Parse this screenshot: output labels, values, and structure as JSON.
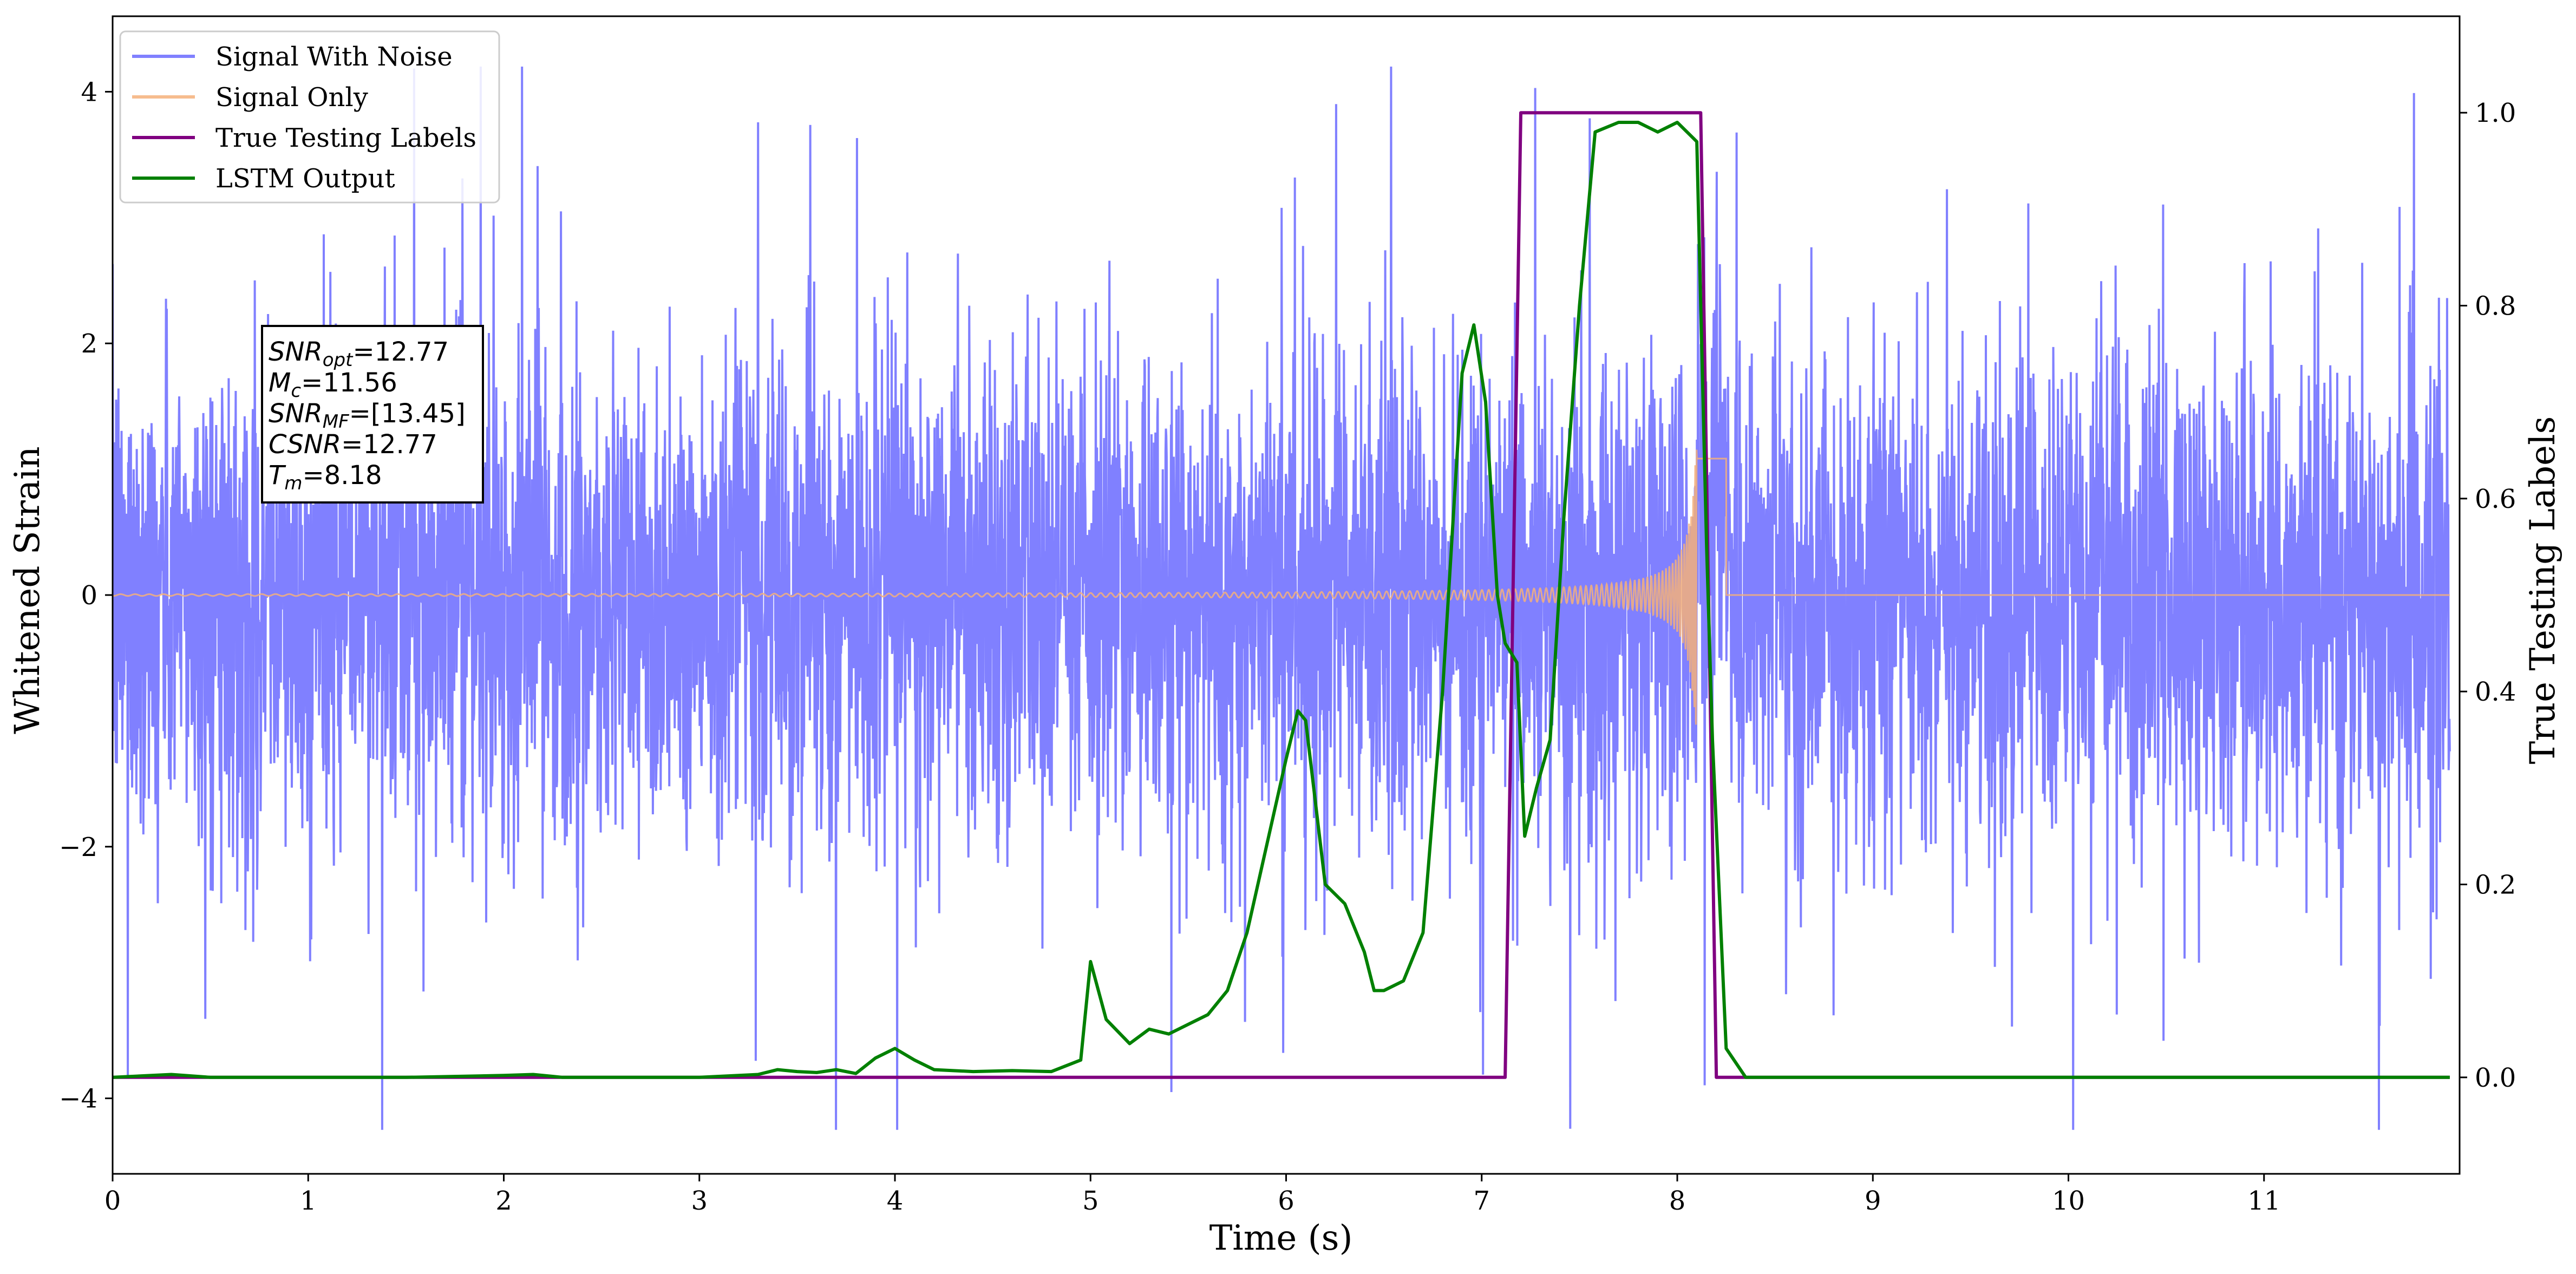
{
  "chart_data": {
    "type": "line",
    "xlabel": "Time (s)",
    "ylabel_left": "Whitened Strain",
    "ylabel_right": "True Testing Labels",
    "xlim": [
      0,
      12
    ],
    "ylim_left": [
      -4.6,
      4.6
    ],
    "ylim_right": [
      -0.1,
      1.1
    ],
    "x_ticks": [
      "0",
      "1",
      "2",
      "3",
      "4",
      "5",
      "6",
      "7",
      "8",
      "9",
      "10",
      "11"
    ],
    "y_ticks_left": [
      "−4",
      "−2",
      "0",
      "2",
      "4"
    ],
    "y_ticks_right": [
      "0.0",
      "0.2",
      "0.4",
      "0.6",
      "0.8",
      "1.0"
    ],
    "legend_position": "top-left",
    "grid": false,
    "colors": {
      "noise": "#8080ff",
      "signal": "#f5b07a",
      "labels": "#800080",
      "lstm": "#008000"
    },
    "series": [
      {
        "name": "Signal With Noise",
        "axis": "left",
        "description_values": {
          "x_start": 0,
          "x_end": 12,
          "typical_range": [
            -1.8,
            1.8
          ],
          "extreme_range": [
            -4.2,
            4.2
          ]
        }
      },
      {
        "name": "Signal Only",
        "axis": "left",
        "description_values": {
          "chirp_start": 0,
          "chirp_peak": 8.1,
          "peak_amplitude": 1.2,
          "zero_after": 8.25
        }
      },
      {
        "name": "True Testing Labels",
        "axis": "right",
        "x": [
          0,
          7.12,
          7.2,
          8.12,
          8.2,
          11.95
        ],
        "y": [
          0,
          0,
          1,
          1,
          0,
          0
        ]
      },
      {
        "name": "LSTM Output",
        "axis": "right",
        "x": [
          0,
          0.3,
          0.5,
          1,
          1.5,
          2,
          2.15,
          2.3,
          2.5,
          3,
          3.3,
          3.4,
          3.5,
          3.6,
          3.7,
          3.8,
          3.9,
          4.0,
          4.1,
          4.2,
          4.4,
          4.6,
          4.8,
          4.95,
          5.0,
          5.08,
          5.2,
          5.3,
          5.4,
          5.5,
          5.6,
          5.7,
          5.8,
          5.9,
          6.0,
          6.06,
          6.1,
          6.2,
          6.3,
          6.4,
          6.45,
          6.5,
          6.6,
          6.7,
          6.8,
          6.9,
          6.96,
          7.02,
          7.08,
          7.12,
          7.18,
          7.22,
          7.28,
          7.35,
          7.42,
          7.5,
          7.58,
          7.7,
          7.8,
          7.9,
          8.0,
          8.1,
          8.12,
          8.15,
          8.18,
          8.25,
          8.35,
          11.95
        ],
        "y": [
          0,
          0.003,
          0,
          0,
          0,
          0.002,
          0.003,
          0,
          0,
          0,
          0.003,
          0.008,
          0.006,
          0.005,
          0.008,
          0.004,
          0.02,
          0.03,
          0.018,
          0.008,
          0.006,
          0.007,
          0.006,
          0.018,
          0.12,
          0.06,
          0.035,
          0.05,
          0.045,
          0.055,
          0.065,
          0.09,
          0.15,
          0.24,
          0.33,
          0.38,
          0.37,
          0.2,
          0.18,
          0.13,
          0.09,
          0.09,
          0.1,
          0.15,
          0.4,
          0.73,
          0.78,
          0.7,
          0.5,
          0.45,
          0.43,
          0.25,
          0.3,
          0.35,
          0.58,
          0.8,
          0.98,
          0.99,
          0.99,
          0.98,
          0.99,
          0.97,
          0.8,
          0.55,
          0.35,
          0.03,
          0,
          0
        ]
      }
    ],
    "annotation": {
      "lines": [
        {
          "base": "SNR",
          "sub": "opt",
          "rest": "=12.77"
        },
        {
          "base": "M",
          "sub": "c",
          "rest": "=11.56"
        },
        {
          "base": "SNR",
          "sub": "MF",
          "rest": "=[13.45]"
        },
        {
          "base": "CSNR",
          "sub": "",
          "rest": "=12.77"
        },
        {
          "base": "T",
          "sub": "m",
          "rest": "=8.18"
        }
      ]
    }
  }
}
